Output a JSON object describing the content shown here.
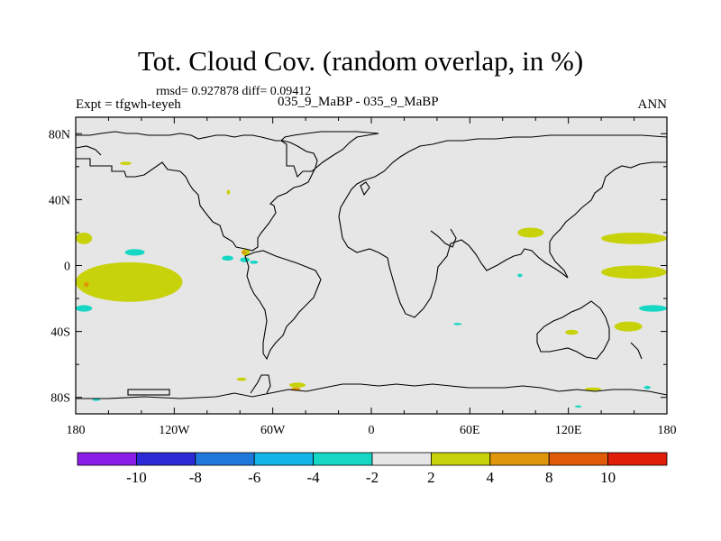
{
  "chart_data": {
    "type": "heatmap",
    "title": "Tot. Cloud Cov. (random overlap, in %)",
    "stats": "rmsd= 0.927878 diff= 0.09412",
    "experiment": "Expt = tfgwh-teyeh",
    "case": "035_9_MaBP - 035_9_MaBP",
    "season": "ANN",
    "projection": "cylindrical equidistant, lon -180 to 180, lat -90 to 90",
    "xlim": [
      -180,
      180
    ],
    "ylim": [
      -90,
      90
    ],
    "x_ticks": [
      {
        "value": -180,
        "label": "180"
      },
      {
        "value": -120,
        "label": "120W"
      },
      {
        "value": -60,
        "label": "60W"
      },
      {
        "value": 0,
        "label": "0"
      },
      {
        "value": 60,
        "label": "60E"
      },
      {
        "value": 120,
        "label": "120E"
      },
      {
        "value": 180,
        "label": "180"
      }
    ],
    "y_ticks": [
      {
        "value": 80,
        "label": "80N"
      },
      {
        "value": 40,
        "label": "40N"
      },
      {
        "value": 0,
        "label": "0"
      },
      {
        "value": -40,
        "label": "40S"
      },
      {
        "value": -80,
        "label": "80S"
      }
    ],
    "colorbar": {
      "levels": [
        -10,
        -8,
        -6,
        -4,
        -2,
        2,
        4,
        8,
        10
      ],
      "labels": [
        "-10",
        "-8",
        "-6",
        "-4",
        "-2",
        "2",
        "4",
        "8",
        "10"
      ],
      "colors": [
        "#8a1ee6",
        "#2a2ad6",
        "#1e78dc",
        "#14b4e6",
        "#16d6c4",
        "#e6e6e6",
        "#c8d20a",
        "#e0960a",
        "#e05a0a",
        "#e01e0a"
      ]
    },
    "background_color": "#e6e6e6",
    "anomaly_regions": [
      {
        "bin": "2 to 4",
        "lon": [
          -180,
          -170
        ],
        "lat": [
          13,
          20
        ]
      },
      {
        "bin": "2 to 4",
        "lon": [
          -180,
          -115
        ],
        "lat": [
          -22,
          2
        ]
      },
      {
        "bin": "2 to 4",
        "lon": [
          -153,
          -146
        ],
        "lat": [
          61,
          63
        ]
      },
      {
        "bin": "2 to 4",
        "lon": [
          -79,
          -74
        ],
        "lat": [
          6,
          10
        ]
      },
      {
        "bin": "4 to 8",
        "lon": [
          -175,
          -172
        ],
        "lat": [
          -13,
          -10
        ]
      },
      {
        "bin": "4 to 8",
        "lon": [
          -79,
          -76
        ],
        "lat": [
          7,
          9
        ]
      },
      {
        "bin": "2 to 4",
        "lon": [
          -50,
          -40
        ],
        "lat": [
          -74,
          -71
        ]
      },
      {
        "bin": "4 to 8",
        "lon": [
          -49,
          -43
        ],
        "lat": [
          -76,
          -74
        ]
      },
      {
        "bin": "2 to 4",
        "lon": [
          -82,
          -76
        ],
        "lat": [
          -70,
          -68
        ]
      },
      {
        "bin": "2 to 4",
        "lon": [
          -88,
          -86
        ],
        "lat": [
          43,
          46
        ]
      },
      {
        "bin": "2 to 4",
        "lon": [
          89,
          105
        ],
        "lat": [
          17,
          23
        ]
      },
      {
        "bin": "2 to 4",
        "lon": [
          140,
          180
        ],
        "lat": [
          13,
          20
        ]
      },
      {
        "bin": "2 to 4",
        "lon": [
          140,
          180
        ],
        "lat": [
          -8,
          0
        ]
      },
      {
        "bin": "2 to 4",
        "lon": [
          148,
          165
        ],
        "lat": [
          -40,
          -34
        ]
      },
      {
        "bin": "2 to 4",
        "lon": [
          130,
          140
        ],
        "lat": [
          -76,
          -74
        ]
      },
      {
        "bin": "2 to 4",
        "lon": [
          118,
          126
        ],
        "lat": [
          -42,
          -39
        ]
      },
      {
        "bin": "-4 to -2",
        "lon": [
          -150,
          -138
        ],
        "lat": [
          6,
          10
        ]
      },
      {
        "bin": "-4 to -2",
        "lon": [
          -180,
          -170
        ],
        "lat": [
          -28,
          -24
        ]
      },
      {
        "bin": "-4 to -2",
        "lon": [
          -91,
          -84
        ],
        "lat": [
          3,
          6
        ]
      },
      {
        "bin": "-4 to -2",
        "lon": [
          -80,
          -74
        ],
        "lat": [
          2,
          5
        ]
      },
      {
        "bin": "-4 to -2",
        "lon": [
          -74,
          -69
        ],
        "lat": [
          1,
          3
        ]
      },
      {
        "bin": "-4 to -2",
        "lon": [
          163,
          180
        ],
        "lat": [
          -28,
          -24
        ]
      },
      {
        "bin": "-4 to -2",
        "lon": [
          50,
          55
        ],
        "lat": [
          -36,
          -35
        ]
      },
      {
        "bin": "-4 to -2",
        "lon": [
          -170,
          -165
        ],
        "lat": [
          -82,
          -81
        ]
      },
      {
        "bin": "-4 to -2",
        "lon": [
          124,
          128
        ],
        "lat": [
          -86,
          -85
        ]
      },
      {
        "bin": "-4 to -2",
        "lon": [
          166,
          170
        ],
        "lat": [
          -75,
          -73
        ]
      },
      {
        "bin": "-4 to -2",
        "lon": [
          89,
          92
        ],
        "lat": [
          -7,
          -5
        ]
      }
    ]
  }
}
